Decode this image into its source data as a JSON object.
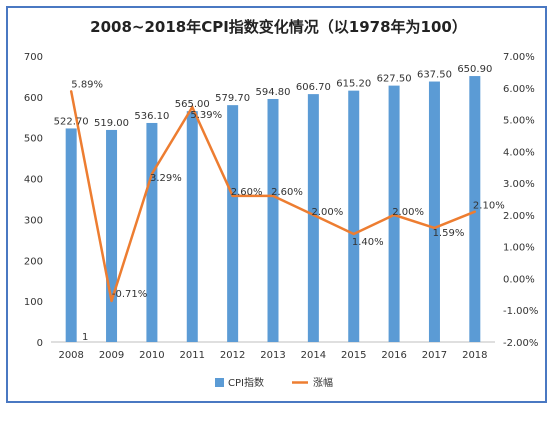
{
  "chart_data": {
    "type": "bar",
    "title": "2008~2018年CPI指数变化情况（以1978年为100）",
    "categories": [
      "2008",
      "2009",
      "2010",
      "2011",
      "2012",
      "2013",
      "2014",
      "2015",
      "2016",
      "2017",
      "2018"
    ],
    "y_left_ticks": [
      "0",
      "100",
      "200",
      "300",
      "400",
      "500",
      "600",
      "700"
    ],
    "y_right_ticks": [
      "-2.00%",
      "-1.00%",
      "0.00%",
      "1.00%",
      "2.00%",
      "3.00%",
      "4.00%",
      "5.00%",
      "6.00%",
      "7.00%"
    ],
    "ylim_left": [
      0,
      700
    ],
    "ylim_right": [
      -2,
      7
    ],
    "series": [
      {
        "name": "CPI指数",
        "type": "bar",
        "axis": "left",
        "color": "#5b9bd5",
        "values": [
          522.7,
          519.0,
          536.1,
          565.0,
          579.7,
          594.8,
          606.7,
          615.2,
          627.5,
          637.5,
          650.9
        ],
        "labels": [
          "522.70",
          "519.00",
          "536.10",
          "565.00",
          "579.70",
          "594.80",
          "606.70",
          "615.20",
          "627.50",
          "637.50",
          "650.90"
        ]
      },
      {
        "name": "涨幅",
        "type": "line",
        "axis": "right",
        "color": "#ed7d31",
        "values": [
          5.89,
          -0.71,
          3.29,
          5.39,
          2.6,
          2.6,
          2.0,
          1.4,
          2.0,
          1.59,
          2.1
        ],
        "labels": [
          "5.89%",
          "-0.71%",
          "3.29%",
          "5.39%",
          "2.60%",
          "2.60%",
          "2.00%",
          "1.40%",
          "2.00%",
          "1.59%",
          "2.10%"
        ]
      }
    ],
    "annotation": "1",
    "legend_position": "bottom",
    "grid": false
  }
}
